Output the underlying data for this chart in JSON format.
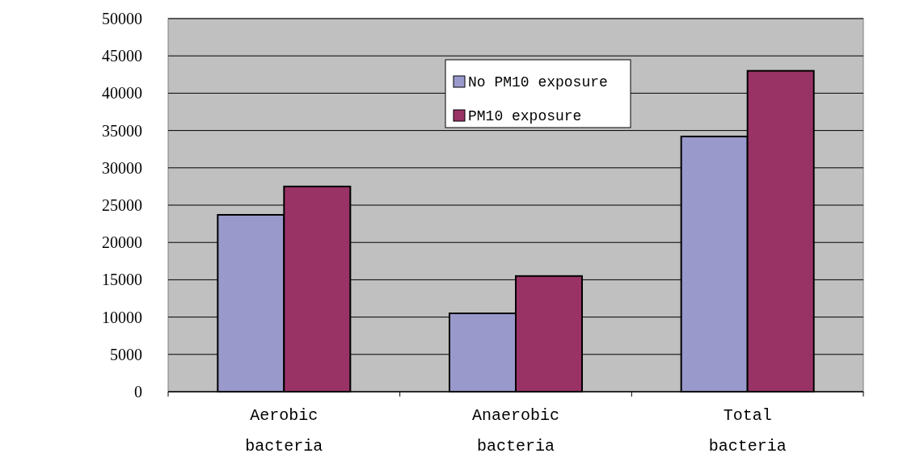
{
  "chart_data": {
    "type": "bar",
    "categories": [
      "Aerobic bacteria",
      "Anaerobic bacteria",
      "Total bacteria"
    ],
    "series": [
      {
        "name": "No PM10 exposure",
        "color": "#9999cc",
        "values": [
          23700,
          10500,
          34200
        ]
      },
      {
        "name": "PM10 exposure",
        "color": "#993366",
        "values": [
          27500,
          15500,
          43000
        ]
      }
    ],
    "ylim": [
      0,
      50000
    ],
    "yticks": [
      0,
      5000,
      10000,
      15000,
      20000,
      25000,
      30000,
      35000,
      40000,
      45000,
      50000
    ],
    "grid": "y",
    "legend": "top"
  }
}
